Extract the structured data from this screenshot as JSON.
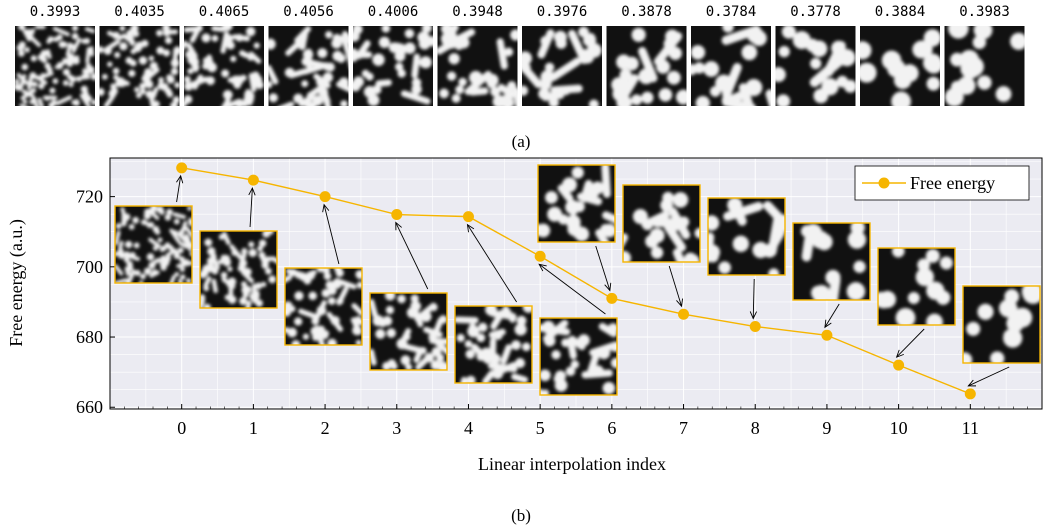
{
  "strip": {
    "values": [
      "0.3993",
      "0.4035",
      "0.4065",
      "0.4056",
      "0.4006",
      "0.3948",
      "0.3976",
      "0.3878",
      "0.3784",
      "0.3778",
      "0.3884",
      "0.3983"
    ],
    "caption": "(a)"
  },
  "chart_data": {
    "type": "line",
    "title": "",
    "xlabel": "Linear interpolation index",
    "ylabel": "Free energy (a.u.)",
    "x": [
      0,
      1,
      2,
      3,
      4,
      5,
      6,
      7,
      8,
      9,
      10,
      11
    ],
    "xticks": [
      "0",
      "1",
      "2",
      "3",
      "4",
      "5",
      "6",
      "7",
      "8",
      "9",
      "10",
      "11"
    ],
    "yticks": [
      "660",
      "680",
      "700",
      "720"
    ],
    "xlim": [
      -1.0,
      12.0
    ],
    "ylim": [
      659.5,
      731
    ],
    "grid": true,
    "legend_position": "top-right",
    "series": [
      {
        "name": "Free energy",
        "color": "#f6b500",
        "values": [
          728.2,
          724.7,
          720.0,
          714.9,
          714.3,
          703.0,
          691.0,
          686.5,
          683.0,
          680.5,
          672.0,
          663.8
        ]
      }
    ],
    "caption": "(b)"
  },
  "colors": {
    "accent": "#f6b500",
    "plot_bg": "#ebebf2",
    "grid": "#ffffff"
  }
}
